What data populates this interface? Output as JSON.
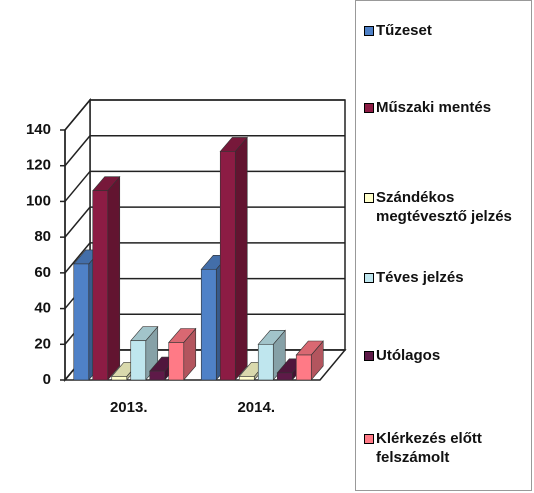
{
  "chart_data": {
    "type": "bar3d",
    "categories": [
      "2013.",
      "2014."
    ],
    "series": [
      {
        "name": "Tűzeset",
        "color": "#4f81c7",
        "values": [
          65,
          62
        ]
      },
      {
        "name": "Műszaki mentés",
        "color": "#8c1c44",
        "values": [
          106,
          128
        ]
      },
      {
        "name": "Szándékos megtévesztő jelzés",
        "color": "#ffffcc",
        "values": [
          2,
          2
        ]
      },
      {
        "name": "Téves jelzés",
        "color": "#bfe6ee",
        "values": [
          22,
          20
        ]
      },
      {
        "name": "Utólagos",
        "color": "#5e1a48",
        "values": [
          5,
          4
        ]
      },
      {
        "name": "Klérkezés előtt felszámolt",
        "color": "#ff7a86",
        "values": [
          21,
          14
        ]
      }
    ],
    "ylim": [
      0,
      140
    ],
    "yticks": [
      0,
      20,
      40,
      60,
      80,
      100,
      120,
      140
    ],
    "grid": true,
    "legend": "right"
  }
}
